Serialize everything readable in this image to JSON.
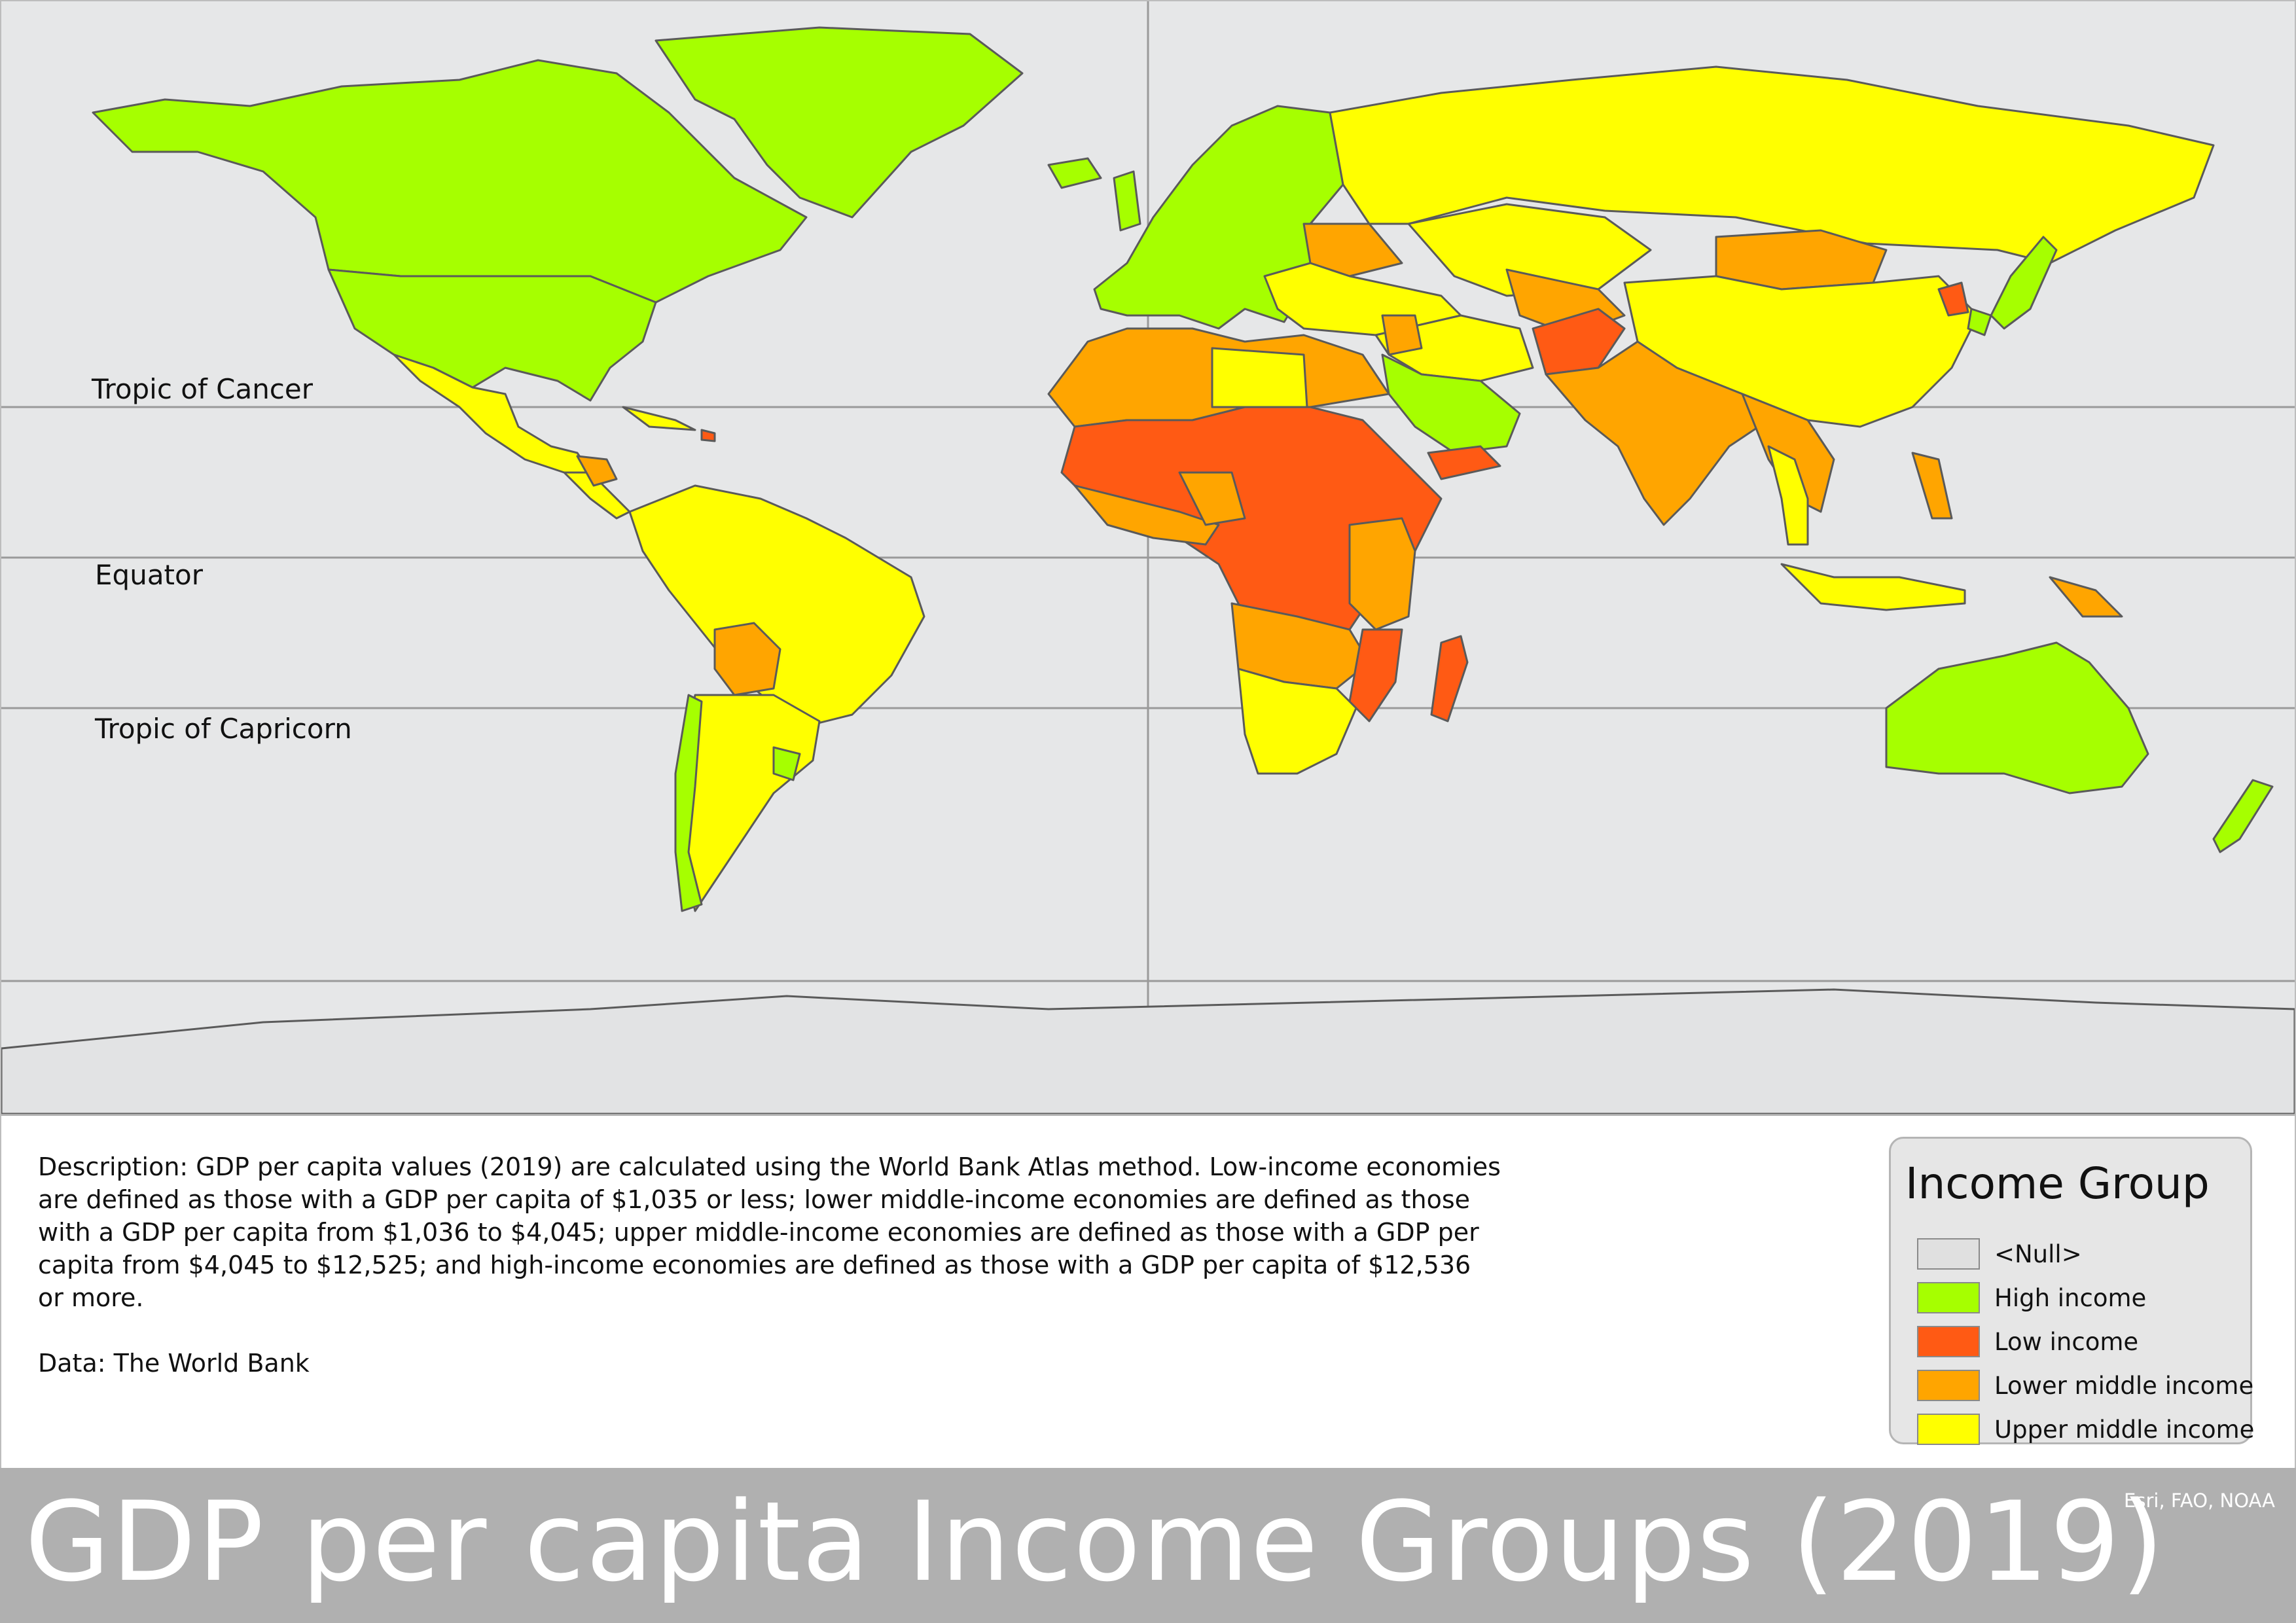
{
  "title": "GDP per capita Income Groups (2019)",
  "credit": "Esri, FAO, NOAA",
  "map": {
    "latitude_labels": {
      "tropic_of_cancer": "Tropic of Cancer",
      "equator": "Equator",
      "tropic_of_capricorn": "Tropic of Capricorn"
    }
  },
  "description": {
    "text": "Description: GDP per capita values (2019) are calculated using the World Bank Atlas method. Low-income economies are defined as those with a GDP per capita of $1,035 or less; lower middle-income economies are defined as those with a GDP per capita from $1,036 to $4,045; upper middle-income economies are defined as those with a GDP per capita from $4,045 to $12,525; and high-income economies are defined as those with a GDP per capita of $12,536 or more.",
    "data_source": "Data: The World Bank"
  },
  "legend": {
    "title": "Income Group",
    "items": [
      {
        "label": "<Null>",
        "color": "#e0e0e0"
      },
      {
        "label": "High income",
        "color": "#a6ff00"
      },
      {
        "label": "Low income",
        "color": "#ff5a14"
      },
      {
        "label": "Lower middle income",
        "color": "#ffa500"
      },
      {
        "label": "Upper middle income",
        "color": "#ffff00"
      }
    ]
  },
  "colors": {
    "ocean": "#e6e7e8",
    "null": "#e0e0e0",
    "high": "#a6ff00",
    "low": "#ff5a14",
    "lower_middle": "#ffa500",
    "upper_middle": "#ffff00",
    "border": "#5a5a5a"
  }
}
